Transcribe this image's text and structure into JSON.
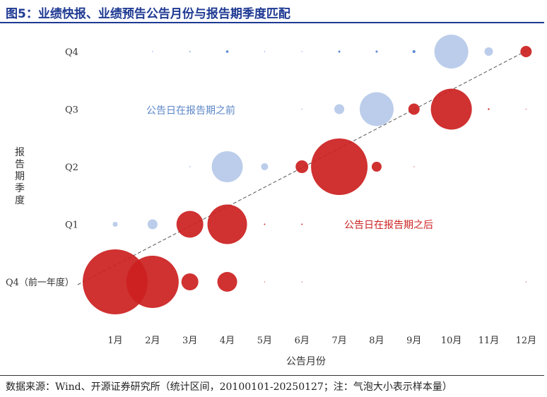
{
  "header": {
    "title": "图5：业绩快报、业绩预告公告月份与报告期季度匹配"
  },
  "footer": {
    "source": "数据来源：Wind、开源证券研究所（统计区间，20100101-20250127；注：气泡大小表示样本量）"
  },
  "chart_data": {
    "type": "scatter",
    "title": "",
    "xlabel": "公告月份",
    "ylabel": "报告期季度",
    "x_categories": [
      "1月",
      "2月",
      "3月",
      "4月",
      "5月",
      "6月",
      "7月",
      "8月",
      "9月",
      "10月",
      "11月",
      "12月"
    ],
    "y_categories": [
      "Q4（前一年度）",
      "Q1",
      "Q2",
      "Q3",
      "Q4"
    ],
    "annotations": {
      "before": "公告日在报告期之前",
      "after": "公告日在报告期之后"
    },
    "colors": {
      "before": "#b4c8e8",
      "after": "#cc1f1f",
      "dot_before": "#4a7bd0",
      "diagonal": "#555555"
    },
    "bubble_size_note": "bubble radius ~ sample size (relative scale)",
    "points": [
      {
        "month": 1,
        "quarter": "Q4（前一年度）",
        "group": "after",
        "size": 46
      },
      {
        "month": 2,
        "quarter": "Q4（前一年度）",
        "group": "after",
        "size": 37
      },
      {
        "month": 3,
        "quarter": "Q4（前一年度）",
        "group": "after",
        "size": 12
      },
      {
        "month": 4,
        "quarter": "Q4（前一年度）",
        "group": "after",
        "size": 14
      },
      {
        "month": 5,
        "quarter": "Q4（前一年度）",
        "group": "after",
        "size": 0.6
      },
      {
        "month": 6,
        "quarter": "Q4（前一年度）",
        "group": "after",
        "size": 0.6
      },
      {
        "month": 12,
        "quarter": "Q4（前一年度）",
        "group": "after",
        "size": 0.6
      },
      {
        "month": 1,
        "quarter": "Q1",
        "group": "before",
        "size": 3.5
      },
      {
        "month": 2,
        "quarter": "Q1",
        "group": "before",
        "size": 7
      },
      {
        "month": 3,
        "quarter": "Q1",
        "group": "after",
        "size": 19
      },
      {
        "month": 4,
        "quarter": "Q1",
        "group": "after",
        "size": 28
      },
      {
        "month": 5,
        "quarter": "Q1",
        "group": "after",
        "size": 1
      },
      {
        "month": 6,
        "quarter": "Q1",
        "group": "after",
        "size": 1
      },
      {
        "month": 3,
        "quarter": "Q2",
        "group": "before",
        "size": 0.6
      },
      {
        "month": 4,
        "quarter": "Q2",
        "group": "before",
        "size": 22
      },
      {
        "month": 5,
        "quarter": "Q2",
        "group": "before",
        "size": 5
      },
      {
        "month": 6,
        "quarter": "Q2",
        "group": "after",
        "size": 9
      },
      {
        "month": 7,
        "quarter": "Q2",
        "group": "after",
        "size": 40
      },
      {
        "month": 8,
        "quarter": "Q2",
        "group": "after",
        "size": 7
      },
      {
        "month": 9,
        "quarter": "Q2",
        "group": "after",
        "size": 0.6
      },
      {
        "month": 6,
        "quarter": "Q3",
        "group": "before",
        "size": 0.6
      },
      {
        "month": 7,
        "quarter": "Q3",
        "group": "before",
        "size": 7
      },
      {
        "month": 8,
        "quarter": "Q3",
        "group": "before",
        "size": 24
      },
      {
        "month": 9,
        "quarter": "Q3",
        "group": "after",
        "size": 8
      },
      {
        "month": 10,
        "quarter": "Q3",
        "group": "after",
        "size": 29
      },
      {
        "month": 11,
        "quarter": "Q3",
        "group": "after",
        "size": 1.2
      },
      {
        "month": 12,
        "quarter": "Q3",
        "group": "after",
        "size": 0.6
      },
      {
        "month": 2,
        "quarter": "Q4",
        "group": "before",
        "size": 0.6
      },
      {
        "month": 3,
        "quarter": "Q4",
        "group": "before",
        "size": 0.8
      },
      {
        "month": 4,
        "quarter": "Q4",
        "group": "before",
        "size": 1.8
      },
      {
        "month": 5,
        "quarter": "Q4",
        "group": "before",
        "size": 0.6
      },
      {
        "month": 6,
        "quarter": "Q4",
        "group": "before",
        "size": 0.6
      },
      {
        "month": 7,
        "quarter": "Q4",
        "group": "before",
        "size": 1.5
      },
      {
        "month": 8,
        "quarter": "Q4",
        "group": "before",
        "size": 1.5
      },
      {
        "month": 9,
        "quarter": "Q4",
        "group": "before",
        "size": 2
      },
      {
        "month": 10,
        "quarter": "Q4",
        "group": "before",
        "size": 24
      },
      {
        "month": 11,
        "quarter": "Q4",
        "group": "before",
        "size": 6
      },
      {
        "month": 12,
        "quarter": "Q4",
        "group": "after",
        "size": 8
      }
    ],
    "grid": false,
    "legend": "none"
  }
}
